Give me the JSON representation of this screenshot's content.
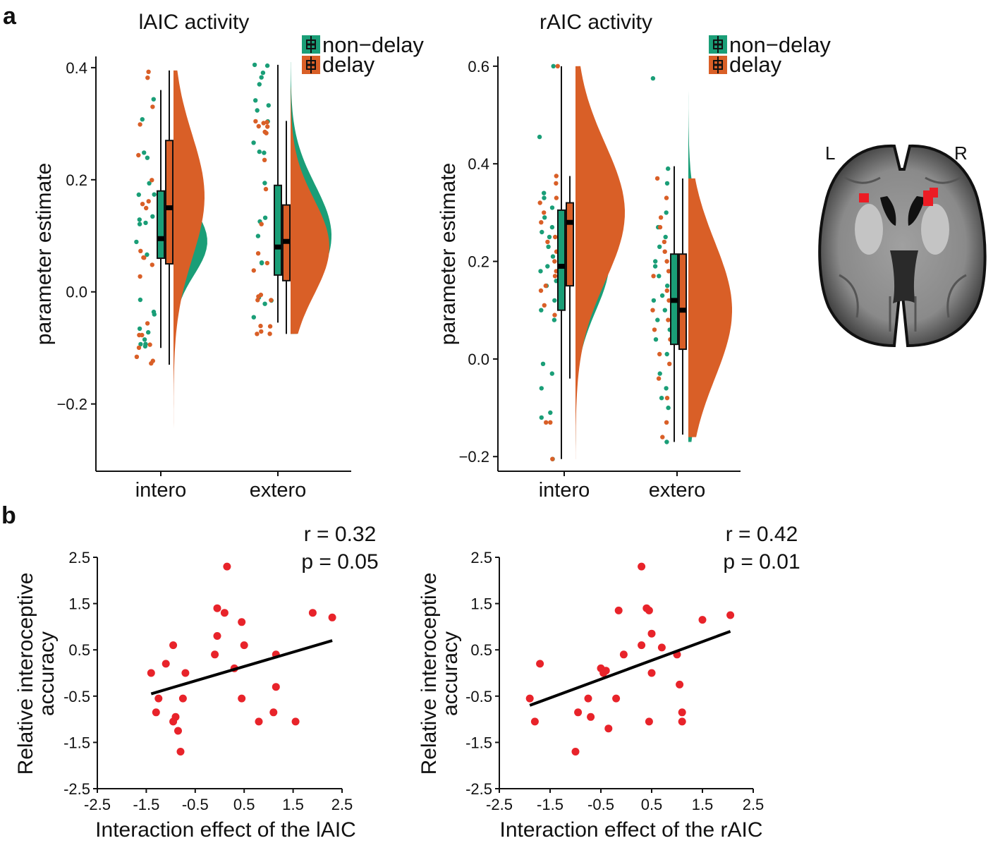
{
  "colors": {
    "non_delay": "#1a9e77",
    "delay": "#d95f27",
    "point": "#e8232a",
    "line": "#000000"
  },
  "panel_labels": [
    "a",
    "b"
  ],
  "brain_labels": {
    "left": "L",
    "right": "R"
  },
  "chart_data": [
    {
      "id": "lAIC",
      "type": "raincloud",
      "title": "lAIC activity",
      "ylabel": "parameter estimate",
      "xlabel": "",
      "categories": [
        "intero",
        "extero"
      ],
      "ylim": [
        -0.32,
        0.42
      ],
      "yticks": [
        -0.2,
        0.0,
        0.2,
        0.4
      ],
      "ytick_labels": [
        "−0.2",
        "0.0",
        "0.2",
        "0.4"
      ],
      "legend": {
        "position": "top-right",
        "entries": [
          {
            "name": "non−delay",
            "color": "#1a9e77"
          },
          {
            "name": "delay",
            "color": "#d95f27"
          }
        ]
      },
      "series": [
        {
          "name": "non−delay",
          "groups": [
            {
              "category": "intero",
              "box": {
                "lo": -0.1,
                "q1": 0.06,
                "median": 0.095,
                "q3": 0.18,
                "hi": 0.36
              },
              "density": {
                "min": -0.18,
                "max": 0.41,
                "peak": 0.09,
                "sd": 0.06,
                "max_width": 48
              }
            },
            {
              "category": "extero",
              "box": {
                "lo": -0.055,
                "q1": 0.03,
                "median": 0.08,
                "q3": 0.19,
                "hi": 0.405
              },
              "density": {
                "min": -0.075,
                "max": 0.41,
                "peak": 0.1,
                "sd": 0.09,
                "max_width": 58
              }
            }
          ]
        },
        {
          "name": "delay",
          "groups": [
            {
              "category": "intero",
              "box": {
                "lo": -0.13,
                "q1": 0.05,
                "median": 0.15,
                "q3": 0.27,
                "hi": 0.395
              },
              "density": {
                "min": -0.29,
                "max": 0.395,
                "peak": 0.17,
                "sd": 0.11,
                "max_width": 44
              }
            },
            {
              "category": "extero",
              "box": {
                "lo": -0.075,
                "q1": 0.02,
                "median": 0.09,
                "q3": 0.155,
                "hi": 0.305
              },
              "density": {
                "min": -0.075,
                "max": 0.365,
                "peak": 0.08,
                "sd": 0.085,
                "max_width": 55
              }
            }
          ]
        }
      ]
    },
    {
      "id": "rAIC",
      "type": "raincloud",
      "title": "rAIC activity",
      "ylabel": "parameter estimate",
      "xlabel": "",
      "categories": [
        "intero",
        "extero"
      ],
      "ylim": [
        -0.23,
        0.62
      ],
      "yticks": [
        -0.2,
        0.0,
        0.2,
        0.4,
        0.6
      ],
      "ytick_labels": [
        "−0.2",
        "0.0",
        "0.2",
        "0.4",
        "0.6"
      ],
      "legend": {
        "position": "top-right",
        "entries": [
          {
            "name": "non−delay",
            "color": "#1a9e77"
          },
          {
            "name": "delay",
            "color": "#d95f27"
          }
        ]
      },
      "series": [
        {
          "name": "non−delay",
          "groups": [
            {
              "category": "intero",
              "box": {
                "lo": -0.205,
                "q1": 0.1,
                "median": 0.19,
                "q3": 0.305,
                "hi": 0.6
              },
              "density": {
                "min": -0.205,
                "max": 0.6,
                "peak": 0.2,
                "sd": 0.1,
                "max_width": 48
              }
            },
            {
              "category": "extero",
              "box": {
                "lo": -0.17,
                "q1": 0.03,
                "median": 0.12,
                "q3": 0.215,
                "hi": 0.395
              },
              "density": {
                "min": -0.17,
                "max": 0.575,
                "peak": 0.1,
                "sd": 0.12,
                "max_width": 55
              }
            }
          ]
        },
        {
          "name": "delay",
          "groups": [
            {
              "category": "intero",
              "box": {
                "lo": -0.04,
                "q1": 0.15,
                "median": 0.28,
                "q3": 0.32,
                "hi": 0.375
              },
              "density": {
                "min": -0.205,
                "max": 0.6,
                "peak": 0.3,
                "sd": 0.14,
                "max_width": 70
              }
            },
            {
              "category": "extero",
              "box": {
                "lo": -0.155,
                "q1": 0.02,
                "median": 0.1,
                "q3": 0.215,
                "hi": 0.37
              },
              "density": {
                "min": -0.16,
                "max": 0.37,
                "peak": 0.1,
                "sd": 0.14,
                "max_width": 62
              }
            }
          ]
        }
      ],
      "points": {
        "non_delay": {
          "intero": [
            0.6,
            0.455,
            0.34,
            0.33,
            0.31,
            0.29,
            0.27,
            0.26,
            0.25,
            0.23,
            0.21,
            0.19,
            0.18,
            0.16,
            0.15,
            0.12,
            0.1,
            0.08,
            -0.01,
            -0.03,
            -0.06,
            -0.11,
            -0.12,
            -0.205
          ],
          "extero": [
            0.575,
            0.39,
            0.36,
            0.3,
            0.27,
            0.25,
            0.23,
            0.2,
            0.19,
            0.17,
            0.15,
            0.13,
            0.12,
            0.1,
            0.08,
            0.06,
            0.04,
            0.01,
            -0.03,
            -0.06,
            -0.08,
            -0.1,
            -0.17
          ]
        },
        "delay": {
          "intero": [
            0.6,
            0.375,
            0.36,
            0.33,
            0.32,
            0.3,
            0.28,
            0.25,
            0.24,
            0.22,
            0.2,
            0.18,
            0.17,
            0.15,
            0.14,
            0.11,
            0.09,
            -0.13,
            -0.13,
            -0.205
          ],
          "extero": [
            0.37,
            0.33,
            0.29,
            0.27,
            0.24,
            0.22,
            0.2,
            0.18,
            0.17,
            0.14,
            0.12,
            0.1,
            0.08,
            0.06,
            0.04,
            0.01,
            -0.01,
            -0.04,
            -0.08,
            -0.13,
            -0.16
          ]
        }
      }
    },
    {
      "id": "scatter_lAIC",
      "type": "scatter",
      "xlabel": "Interaction effect of the lAIC",
      "ylabel": "Relative interoceptive accuracy",
      "ylabel_lines": [
        "Relative interoceptive",
        "accuracy"
      ],
      "xlim": [
        -2.5,
        2.5
      ],
      "ylim": [
        -2.5,
        2.5
      ],
      "xticks": [
        -2.5,
        -1.5,
        -0.5,
        0.5,
        1.5,
        2.5
      ],
      "xtick_labels": [
        "-2.5",
        "-1.5",
        "-0.5",
        "0.5",
        "1.5",
        "2.5"
      ],
      "yticks": [
        -2.5,
        -1.5,
        -0.5,
        0.5,
        1.5,
        2.5
      ],
      "ytick_labels": [
        "-2.5",
        "-1.5",
        "-0.5",
        "0.5",
        "1.5",
        "2.5"
      ],
      "annotation": [
        "r = 0.32",
        "p = 0.05"
      ],
      "fit_line": {
        "x": [
          -1.4,
          2.3
        ],
        "y": [
          -0.45,
          0.7
        ]
      },
      "x": [
        0.15,
        -0.05,
        0.1,
        1.9,
        2.3,
        0.45,
        -0.05,
        -0.95,
        0.5,
        -0.1,
        -1.1,
        1.15,
        -1.4,
        -0.7,
        0.3,
        1.15,
        -1.25,
        -0.75,
        0.45,
        -1.3,
        1.1,
        0.8,
        1.55,
        -0.95,
        -0.9,
        -0.85,
        -0.8
      ],
      "y": [
        2.3,
        1.4,
        1.3,
        1.3,
        1.2,
        1.1,
        0.8,
        0.6,
        0.6,
        0.4,
        0.2,
        0.4,
        0.0,
        0.0,
        0.1,
        -0.3,
        -0.55,
        -0.55,
        -0.55,
        -0.85,
        -0.85,
        -1.05,
        -1.05,
        -1.05,
        -0.95,
        -1.25,
        -1.7
      ]
    },
    {
      "id": "scatter_rAIC",
      "type": "scatter",
      "xlabel": "Interaction effect of the rAIC",
      "ylabel": "Relative interoceptive accuracy",
      "ylabel_lines": [
        "Relative interoceptive",
        "accuracy"
      ],
      "xlim": [
        -2.5,
        2.5
      ],
      "ylim": [
        -2.5,
        2.5
      ],
      "xticks": [
        -2.5,
        -1.5,
        -0.5,
        0.5,
        1.5,
        2.5
      ],
      "xtick_labels": [
        "-2.5",
        "-1.5",
        "-0.5",
        "0.5",
        "1.5",
        "2.5"
      ],
      "yticks": [
        -2.5,
        -1.5,
        -0.5,
        0.5,
        1.5,
        2.5
      ],
      "ytick_labels": [
        "-2.5",
        "-1.5",
        "-0.5",
        "0.5",
        "1.5",
        "2.5"
      ],
      "annotation": [
        "r = 0.42",
        "p = 0.01"
      ],
      "fit_line": {
        "x": [
          -1.9,
          2.05
        ],
        "y": [
          -0.7,
          0.9
        ]
      },
      "x": [
        0.3,
        -0.15,
        0.4,
        0.45,
        2.05,
        1.5,
        0.5,
        0.3,
        0.7,
        -0.05,
        1.0,
        -1.7,
        -0.5,
        -0.4,
        -0.45,
        0.5,
        1.05,
        -1.9,
        -0.75,
        -0.2,
        -1.8,
        -0.95,
        -0.7,
        1.1,
        0.45,
        1.1,
        -0.35,
        -1.0
      ],
      "y": [
        2.3,
        1.35,
        1.4,
        1.35,
        1.25,
        1.15,
        0.85,
        0.6,
        0.55,
        0.4,
        0.4,
        0.2,
        0.1,
        0.05,
        0.0,
        0.0,
        -0.25,
        -0.55,
        -0.55,
        -0.55,
        -1.05,
        -0.85,
        -0.95,
        -0.85,
        -1.05,
        -1.05,
        -1.2,
        -1.7
      ]
    }
  ]
}
